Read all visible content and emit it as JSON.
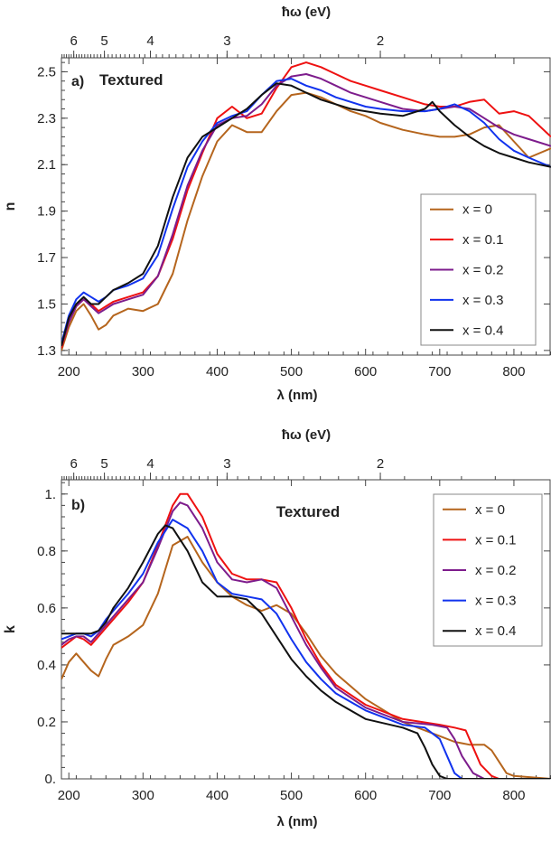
{
  "colors": {
    "x0": "#b5651d",
    "x01": "#ee1111",
    "x02": "#7d1c8c",
    "x03": "#1133ee",
    "x04": "#111111"
  },
  "chart_data": [
    {
      "type": "line",
      "panel_label": "a)",
      "title": "Textured",
      "xlabel": "λ (nm)",
      "ylabel": "n",
      "top_axis_label": "ħω (eV)",
      "xlim": [
        190,
        850
      ],
      "ylim": [
        1.28,
        2.56
      ],
      "x_ticks": [
        200,
        300,
        400,
        500,
        600,
        700,
        800
      ],
      "y_ticks": [
        "1.3",
        "1.5",
        "1.7",
        "1.9",
        "2.1",
        "2.3",
        "2.5"
      ],
      "y_tick_values": [
        1.3,
        1.5,
        1.7,
        1.9,
        2.1,
        2.3,
        2.5
      ],
      "top_ticks": [
        "6",
        "5",
        "4",
        "3",
        "2"
      ],
      "top_tick_values_eV": [
        6,
        5,
        4,
        3,
        2
      ],
      "legend_position": "right-middle",
      "series": [
        {
          "name": "x = 0",
          "color": "#b5651d",
          "x": [
            190,
            200,
            210,
            220,
            230,
            240,
            250,
            260,
            280,
            300,
            320,
            340,
            360,
            380,
            400,
            420,
            440,
            460,
            480,
            500,
            520,
            540,
            560,
            580,
            600,
            620,
            650,
            680,
            700,
            720,
            740,
            760,
            780,
            800,
            820,
            850
          ],
          "y": [
            1.3,
            1.4,
            1.47,
            1.5,
            1.45,
            1.39,
            1.41,
            1.45,
            1.48,
            1.47,
            1.5,
            1.63,
            1.86,
            2.05,
            2.2,
            2.27,
            2.24,
            2.24,
            2.33,
            2.4,
            2.41,
            2.39,
            2.36,
            2.33,
            2.31,
            2.28,
            2.25,
            2.23,
            2.22,
            2.22,
            2.23,
            2.26,
            2.27,
            2.2,
            2.13,
            2.17
          ]
        },
        {
          "name": "x = 0.1",
          "color": "#ee1111",
          "x": [
            190,
            200,
            210,
            220,
            230,
            240,
            250,
            260,
            280,
            300,
            320,
            340,
            360,
            380,
            400,
            420,
            440,
            460,
            480,
            500,
            520,
            540,
            560,
            580,
            600,
            620,
            650,
            680,
            700,
            720,
            740,
            760,
            780,
            800,
            820,
            850
          ],
          "y": [
            1.31,
            1.42,
            1.49,
            1.52,
            1.5,
            1.47,
            1.49,
            1.51,
            1.53,
            1.55,
            1.62,
            1.78,
            1.99,
            2.15,
            2.3,
            2.35,
            2.3,
            2.32,
            2.43,
            2.52,
            2.54,
            2.52,
            2.49,
            2.46,
            2.44,
            2.42,
            2.39,
            2.36,
            2.35,
            2.35,
            2.37,
            2.38,
            2.32,
            2.33,
            2.31,
            2.22
          ]
        },
        {
          "name": "x = 0.2",
          "color": "#7d1c8c",
          "x": [
            190,
            200,
            210,
            220,
            230,
            240,
            250,
            260,
            280,
            300,
            320,
            340,
            360,
            380,
            400,
            420,
            440,
            460,
            480,
            500,
            520,
            540,
            560,
            580,
            600,
            620,
            650,
            680,
            700,
            720,
            740,
            760,
            780,
            800,
            820,
            850
          ],
          "y": [
            1.32,
            1.42,
            1.49,
            1.52,
            1.49,
            1.46,
            1.48,
            1.5,
            1.52,
            1.54,
            1.62,
            1.8,
            2.01,
            2.16,
            2.27,
            2.3,
            2.31,
            2.36,
            2.44,
            2.48,
            2.49,
            2.47,
            2.44,
            2.41,
            2.39,
            2.37,
            2.34,
            2.33,
            2.34,
            2.35,
            2.34,
            2.3,
            2.26,
            2.23,
            2.21,
            2.18
          ]
        },
        {
          "name": "x = 0.3",
          "color": "#1133ee",
          "x": [
            190,
            200,
            210,
            220,
            230,
            240,
            250,
            260,
            280,
            300,
            320,
            340,
            360,
            380,
            400,
            420,
            440,
            460,
            480,
            500,
            520,
            540,
            560,
            580,
            600,
            620,
            650,
            680,
            700,
            720,
            740,
            760,
            780,
            800,
            820,
            850
          ],
          "y": [
            1.33,
            1.45,
            1.52,
            1.55,
            1.53,
            1.51,
            1.53,
            1.56,
            1.58,
            1.61,
            1.71,
            1.91,
            2.09,
            2.2,
            2.28,
            2.31,
            2.33,
            2.4,
            2.46,
            2.47,
            2.44,
            2.42,
            2.39,
            2.37,
            2.35,
            2.34,
            2.33,
            2.33,
            2.34,
            2.36,
            2.33,
            2.28,
            2.21,
            2.16,
            2.13,
            2.09
          ]
        },
        {
          "name": "x = 0.4",
          "color": "#111111",
          "x": [
            190,
            200,
            210,
            220,
            230,
            240,
            250,
            260,
            280,
            300,
            320,
            340,
            360,
            380,
            400,
            420,
            440,
            460,
            480,
            500,
            520,
            540,
            560,
            580,
            600,
            620,
            650,
            680,
            690,
            700,
            720,
            740,
            760,
            780,
            800,
            820,
            850
          ],
          "y": [
            1.32,
            1.44,
            1.5,
            1.53,
            1.5,
            1.5,
            1.53,
            1.56,
            1.59,
            1.63,
            1.75,
            1.96,
            2.13,
            2.22,
            2.26,
            2.3,
            2.34,
            2.4,
            2.45,
            2.44,
            2.41,
            2.38,
            2.36,
            2.34,
            2.33,
            2.32,
            2.31,
            2.34,
            2.37,
            2.33,
            2.27,
            2.22,
            2.18,
            2.15,
            2.13,
            2.11,
            2.09
          ]
        }
      ]
    },
    {
      "type": "line",
      "panel_label": "b)",
      "title": "Textured",
      "xlabel": "λ (nm)",
      "ylabel": "k",
      "top_axis_label": "ħω (eV)",
      "xlim": [
        190,
        850
      ],
      "ylim": [
        0,
        1.05
      ],
      "x_ticks": [
        200,
        300,
        400,
        500,
        600,
        700,
        800
      ],
      "y_ticks": [
        "0.",
        "0.2",
        "0.4",
        "0.6",
        "0.8",
        "1."
      ],
      "y_tick_values": [
        0,
        0.2,
        0.4,
        0.6,
        0.8,
        1.0
      ],
      "top_ticks": [
        "6",
        "5",
        "4",
        "3",
        "2"
      ],
      "top_tick_values_eV": [
        6,
        5,
        4,
        3,
        2
      ],
      "legend_position": "top-right",
      "series": [
        {
          "name": "x = 0",
          "color": "#b5651d",
          "x": [
            190,
            200,
            210,
            220,
            230,
            240,
            250,
            260,
            280,
            300,
            320,
            340,
            360,
            380,
            400,
            420,
            440,
            460,
            480,
            500,
            520,
            540,
            560,
            600,
            650,
            700,
            720,
            740,
            760,
            770,
            780,
            790,
            800,
            850
          ],
          "y": [
            0.35,
            0.41,
            0.44,
            0.41,
            0.38,
            0.36,
            0.42,
            0.47,
            0.5,
            0.54,
            0.65,
            0.82,
            0.85,
            0.76,
            0.69,
            0.64,
            0.61,
            0.59,
            0.61,
            0.58,
            0.51,
            0.43,
            0.37,
            0.28,
            0.2,
            0.15,
            0.13,
            0.12,
            0.12,
            0.1,
            0.06,
            0.02,
            0.01,
            0.0
          ]
        },
        {
          "name": "x = 0.1",
          "color": "#ee1111",
          "x": [
            190,
            200,
            210,
            220,
            230,
            240,
            250,
            260,
            280,
            300,
            320,
            340,
            350,
            360,
            380,
            400,
            420,
            440,
            460,
            480,
            500,
            520,
            540,
            560,
            600,
            650,
            700,
            720,
            735,
            745,
            755,
            770,
            780,
            850
          ],
          "y": [
            0.46,
            0.48,
            0.5,
            0.49,
            0.47,
            0.5,
            0.53,
            0.56,
            0.62,
            0.69,
            0.82,
            0.96,
            1.0,
            1.0,
            0.92,
            0.79,
            0.72,
            0.7,
            0.7,
            0.69,
            0.6,
            0.49,
            0.4,
            0.33,
            0.26,
            0.21,
            0.19,
            0.18,
            0.17,
            0.11,
            0.05,
            0.01,
            0.0,
            0.0
          ]
        },
        {
          "name": "x = 0.2",
          "color": "#7d1c8c",
          "x": [
            190,
            200,
            210,
            220,
            230,
            240,
            250,
            260,
            280,
            300,
            320,
            340,
            350,
            360,
            380,
            400,
            420,
            440,
            460,
            480,
            500,
            520,
            540,
            560,
            600,
            650,
            690,
            710,
            720,
            730,
            745,
            760,
            850
          ],
          "y": [
            0.47,
            0.49,
            0.5,
            0.5,
            0.48,
            0.51,
            0.54,
            0.57,
            0.63,
            0.69,
            0.81,
            0.94,
            0.97,
            0.96,
            0.88,
            0.76,
            0.7,
            0.69,
            0.7,
            0.67,
            0.57,
            0.47,
            0.39,
            0.32,
            0.25,
            0.2,
            0.19,
            0.18,
            0.14,
            0.08,
            0.02,
            0.0,
            0.0
          ]
        },
        {
          "name": "x = 0.3",
          "color": "#1133ee",
          "x": [
            190,
            200,
            210,
            220,
            230,
            240,
            250,
            260,
            280,
            300,
            320,
            340,
            360,
            380,
            400,
            420,
            440,
            460,
            480,
            500,
            520,
            540,
            560,
            600,
            650,
            680,
            700,
            710,
            720,
            730,
            850
          ],
          "y": [
            0.49,
            0.5,
            0.51,
            0.51,
            0.5,
            0.52,
            0.56,
            0.59,
            0.65,
            0.72,
            0.83,
            0.91,
            0.88,
            0.8,
            0.69,
            0.65,
            0.64,
            0.63,
            0.58,
            0.49,
            0.41,
            0.35,
            0.3,
            0.24,
            0.19,
            0.18,
            0.14,
            0.08,
            0.02,
            0.0,
            0.0
          ]
        },
        {
          "name": "x = 0.4",
          "color": "#111111",
          "x": [
            190,
            200,
            210,
            220,
            230,
            240,
            250,
            260,
            280,
            300,
            320,
            330,
            340,
            360,
            380,
            400,
            420,
            440,
            460,
            480,
            500,
            520,
            540,
            560,
            600,
            650,
            670,
            680,
            690,
            700,
            710,
            850
          ],
          "y": [
            0.51,
            0.51,
            0.51,
            0.51,
            0.51,
            0.52,
            0.55,
            0.6,
            0.67,
            0.76,
            0.86,
            0.89,
            0.88,
            0.8,
            0.69,
            0.64,
            0.64,
            0.63,
            0.58,
            0.5,
            0.42,
            0.36,
            0.31,
            0.27,
            0.21,
            0.18,
            0.16,
            0.11,
            0.05,
            0.01,
            0.0,
            0.0
          ]
        }
      ]
    }
  ]
}
